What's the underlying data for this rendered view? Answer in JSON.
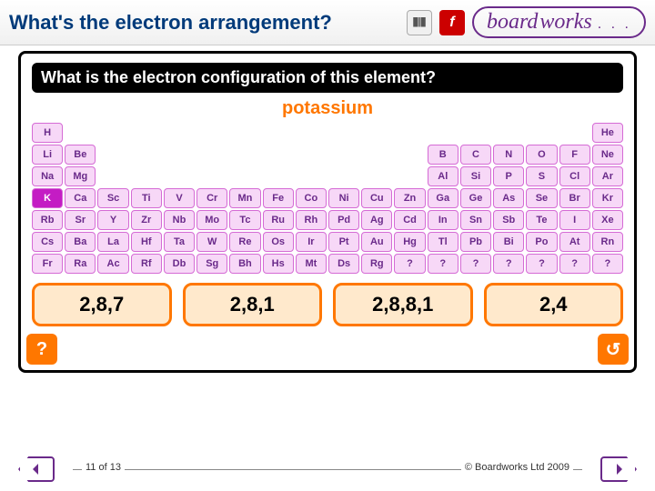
{
  "header": {
    "title": "What's the electron arrangement?",
    "logo_board": "board",
    "logo_works": "works",
    "logo_dots": ". . ."
  },
  "stage": {
    "question": "What is the electron configuration of this element?",
    "element_name": "potassium",
    "highlighted_symbol": "K",
    "rows": [
      [
        "H",
        "",
        "",
        "",
        "",
        "",
        "",
        "",
        "",
        "",
        "",
        "",
        "",
        "",
        "",
        "",
        "",
        "He"
      ],
      [
        "Li",
        "Be",
        "",
        "",
        "",
        "",
        "",
        "",
        "",
        "",
        "",
        "",
        "B",
        "C",
        "N",
        "O",
        "F",
        "Ne"
      ],
      [
        "Na",
        "Mg",
        "",
        "",
        "",
        "",
        "",
        "",
        "",
        "",
        "",
        "",
        "Al",
        "Si",
        "P",
        "S",
        "Cl",
        "Ar"
      ],
      [
        "K",
        "Ca",
        "Sc",
        "Ti",
        "V",
        "Cr",
        "Mn",
        "Fe",
        "Co",
        "Ni",
        "Cu",
        "Zn",
        "Ga",
        "Ge",
        "As",
        "Se",
        "Br",
        "Kr"
      ],
      [
        "Rb",
        "Sr",
        "Y",
        "Zr",
        "Nb",
        "Mo",
        "Tc",
        "Ru",
        "Rh",
        "Pd",
        "Ag",
        "Cd",
        "In",
        "Sn",
        "Sb",
        "Te",
        "I",
        "Xe"
      ],
      [
        "Cs",
        "Ba",
        "La",
        "Hf",
        "Ta",
        "W",
        "Re",
        "Os",
        "Ir",
        "Pt",
        "Au",
        "Hg",
        "Tl",
        "Pb",
        "Bi",
        "Po",
        "At",
        "Rn"
      ],
      [
        "Fr",
        "Ra",
        "Ac",
        "Rf",
        "Db",
        "Sg",
        "Bh",
        "Hs",
        "Mt",
        "Ds",
        "Rg",
        "?",
        "?",
        "?",
        "?",
        "?",
        "?",
        "?"
      ]
    ],
    "answers": [
      "2,8,7",
      "2,8,1",
      "2,8,8,1",
      "2,4"
    ],
    "help_label": "?",
    "reset_label": "↺"
  },
  "footer": {
    "page_counter": "11 of 13",
    "copyright": "© Boardworks Ltd 2009"
  },
  "colors": {
    "brand_purple": "#6a2a8a",
    "brand_blue": "#003a7a",
    "accent_orange": "#ff7700",
    "cell_fill": "#f7d8f7",
    "cell_border": "#d56bd5",
    "highlight_fill": "#c41cc4"
  }
}
